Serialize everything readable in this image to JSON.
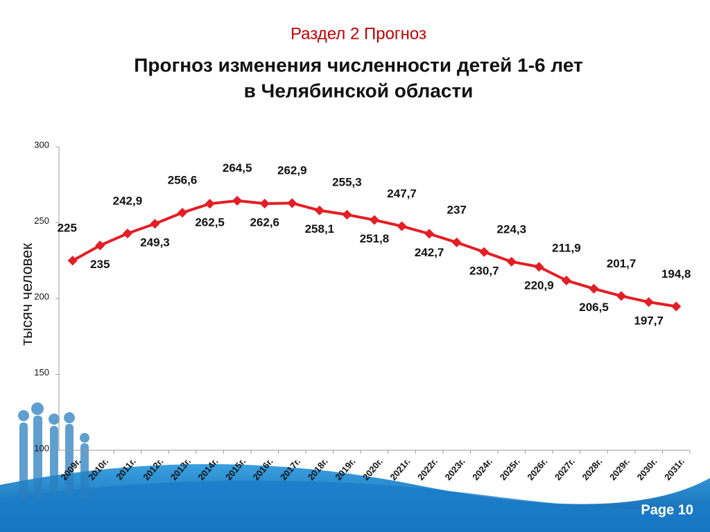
{
  "chart_data": {
    "type": "line",
    "section": "Раздел 2 Прогноз",
    "title": "Прогноз изменения численности детей 1-6 лет",
    "subtitle": "в Челябинской области",
    "y_label": "тысяч человек",
    "categories": [
      "2009г.",
      "2010г.",
      "2011г.",
      "2012г.",
      "2013г.",
      "2014г.",
      "2015г.",
      "2016г.",
      "2017г.",
      "2018г.",
      "2019г.",
      "2020г.",
      "2021г.",
      "2022г.",
      "2023г.",
      "2024г.",
      "2025г.",
      "2026г.",
      "2027г.",
      "2028г.",
      "2029г.",
      "2030г.",
      "2031г."
    ],
    "values": [
      225,
      235,
      242.9,
      249.3,
      256.6,
      262.5,
      264.5,
      262.6,
      262.9,
      258.1,
      255.3,
      251.8,
      247.7,
      242.7,
      237,
      230.7,
      224.3,
      220.9,
      211.9,
      206.5,
      201.7,
      197.7,
      194.8
    ],
    "value_labels": [
      "225",
      "235",
      "242,9",
      "249,3",
      "256,6",
      "262,5",
      "264,5",
      "262,6",
      "262,9",
      "258,1",
      "255,3",
      "251,8",
      "247,7",
      "242,7",
      "237",
      "230,7",
      "224,3",
      "220,9",
      "211,9",
      "206,5",
      "201,7",
      "197,7",
      "194,8"
    ],
    "color": "#e31e24",
    "ylim": [
      100,
      300
    ],
    "yticks": [
      100,
      150,
      200,
      250,
      300
    ],
    "page": "Page 10"
  }
}
